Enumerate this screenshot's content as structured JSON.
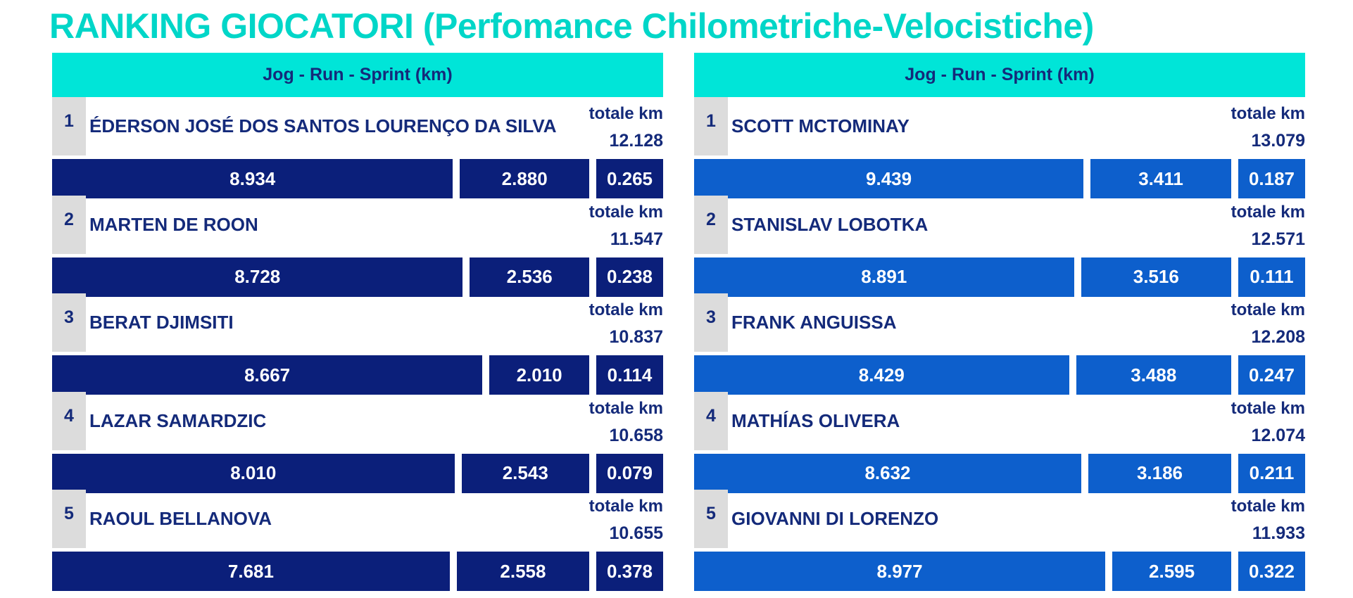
{
  "title": "RANKING GIOCATORI (Perfomance Chilometriche-Velocistiche)",
  "colors": {
    "title": "#00d6c8",
    "header_bg": "#00e5d8",
    "text": "#142a7a",
    "left_bars": "#0b1f7a",
    "right_bars": "#0d5fcc",
    "rank_bg": "#dcdcdc"
  },
  "chart_data": [
    {
      "type": "bar",
      "stacked": true,
      "header": "Jog - Run - Sprint (km)",
      "total_label": "totale km",
      "players": [
        {
          "rank": "1",
          "name": "ÉDERSON JOSÉ DOS SANTOS LOURENÇO DA SILVA",
          "total": "12.128",
          "jog": "8.934",
          "run": "2.880",
          "sprint": "0.265"
        },
        {
          "rank": "2",
          "name": "MARTEN DE ROON",
          "total": "11.547",
          "jog": "8.728",
          "run": "2.536",
          "sprint": "0.238"
        },
        {
          "rank": "3",
          "name": "BERAT DJIMSITI",
          "total": "10.837",
          "jog": "8.667",
          "run": "2.010",
          "sprint": "0.114"
        },
        {
          "rank": "4",
          "name": "LAZAR SAMARDZIC",
          "total": "10.658",
          "jog": "8.010",
          "run": "2.543",
          "sprint": "0.079"
        },
        {
          "rank": "5",
          "name": "RAOUL BELLANOVA",
          "total": "10.655",
          "jog": "7.681",
          "run": "2.558",
          "sprint": "0.378"
        }
      ]
    },
    {
      "type": "bar",
      "stacked": true,
      "header": "Jog - Run - Sprint (km)",
      "total_label": "totale km",
      "players": [
        {
          "rank": "1",
          "name": "SCOTT MCTOMINAY",
          "total": "13.079",
          "jog": "9.439",
          "run": "3.411",
          "sprint": "0.187"
        },
        {
          "rank": "2",
          "name": "STANISLAV LOBOTKA",
          "total": "12.571",
          "jog": "8.891",
          "run": "3.516",
          "sprint": "0.111"
        },
        {
          "rank": "3",
          "name": "FRANK ANGUISSA",
          "total": "12.208",
          "jog": "8.429",
          "run": "3.488",
          "sprint": "0.247"
        },
        {
          "rank": "4",
          "name": "MATHÍAS OLIVERA",
          "total": "12.074",
          "jog": "8.632",
          "run": "3.186",
          "sprint": "0.211"
        },
        {
          "rank": "5",
          "name": "GIOVANNI DI LORENZO",
          "total": "11.933",
          "jog": "8.977",
          "run": "2.595",
          "sprint": "0.322"
        }
      ]
    }
  ]
}
